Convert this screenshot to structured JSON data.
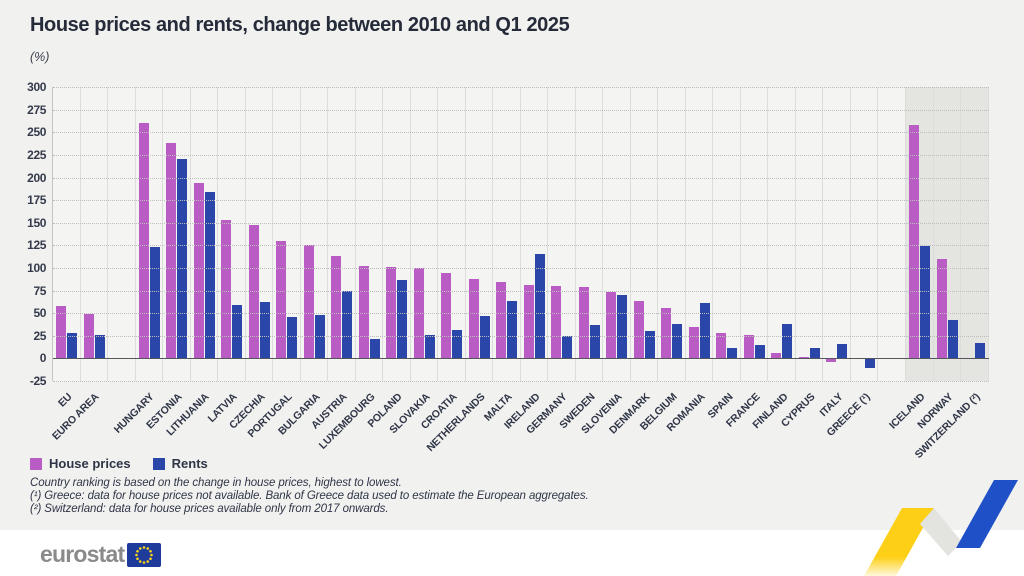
{
  "title": "House prices and rents, change between 2010 and Q1 2025",
  "unit_label": "(%)",
  "legend": {
    "house_prices": "House prices",
    "rents": "Rents"
  },
  "footnotes": [
    "Country ranking is based on the change in house prices, highest to lowest.",
    "(¹) Greece: data for house prices not available. Bank of Greece data used to estimate the European aggregates.",
    "(²) Switzerland: data for house prices available only from 2017 onwards."
  ],
  "logo": {
    "text": "eurostat"
  },
  "colors": {
    "house_prices": "#b95cc4",
    "rents": "#2a46a8",
    "shaded_region": "#e4e4e1",
    "page_background": "#f1f1ef",
    "footer_background": "#ffffff",
    "axis_line": "#55565a",
    "eu_flag_blue": "#1e3a9b",
    "eu_star_yellow": "#ffd617",
    "zigzag_yellow": "#fdd017",
    "zigzag_blue": "#2050c8"
  },
  "chart_data": {
    "type": "bar",
    "title": "House prices and rents, change between 2010 and Q1 2025",
    "xlabel": "",
    "ylabel": "(%)",
    "ylim": [
      -25,
      300
    ],
    "ytick_step": 25,
    "grid": "dotted horizontal, solid vertical column separators",
    "legend_position": "bottom-left",
    "categories": [
      "EU",
      "EURO AREA",
      "HUNGARY",
      "ESTONIA",
      "LITHUANIA",
      "LATVIA",
      "CZECHIA",
      "PORTUGAL",
      "BULGARIA",
      "AUSTRIA",
      "LUXEMBOURG",
      "POLAND",
      "SLOVAKIA",
      "CROATIA",
      "NETHERLANDS",
      "MALTA",
      "IRELAND",
      "GERMANY",
      "SWEDEN",
      "SLOVENIA",
      "DENMARK",
      "BELGIUM",
      "ROMANIA",
      "SPAIN",
      "FRANCE",
      "FINLAND",
      "CYPRUS",
      "ITALY",
      "GREECE (¹)",
      "ICELAND",
      "NORWAY",
      "SWITZERLAND (²)"
    ],
    "series": [
      {
        "name": "House prices",
        "values": [
          58,
          49,
          260,
          238,
          194,
          153,
          147,
          130,
          125,
          113,
          102,
          101,
          100,
          94,
          88,
          85,
          81,
          80,
          79,
          73,
          64,
          56,
          35,
          28,
          26,
          6,
          1,
          -4,
          null,
          258,
          110,
          null
        ]
      },
      {
        "name": "Rents",
        "values": [
          28,
          26,
          123,
          220,
          184,
          59,
          62,
          46,
          48,
          75,
          22,
          87,
          26,
          31,
          47,
          63,
          115,
          25,
          37,
          70,
          30,
          38,
          61,
          12,
          15,
          38,
          12,
          16,
          -11,
          124,
          43,
          17
        ]
      }
    ],
    "separator_after_indices": [
      1,
      28
    ],
    "shaded_from_index": 29
  }
}
